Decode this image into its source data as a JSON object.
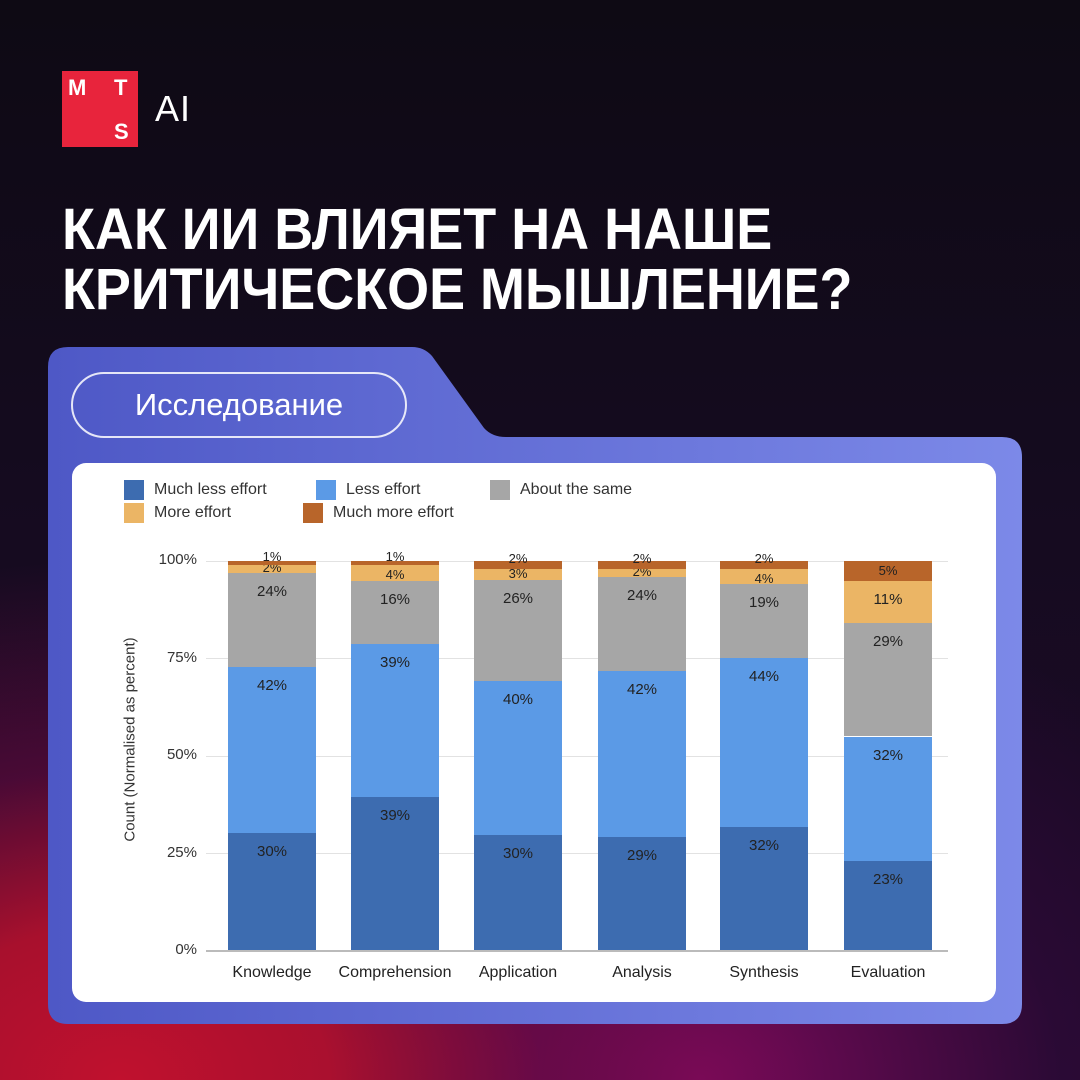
{
  "brand": {
    "logo_letters": [
      "M",
      "T",
      "S"
    ],
    "logo_suffix": "AI",
    "logo_color": "#e8243c"
  },
  "headline": {
    "line1": "КАК ИИ ВЛИЯЕТ НА НАШЕ",
    "line2": "КРИТИЧЕСКОЕ МЫШЛЕНИЕ?"
  },
  "tag": {
    "label": "Исследование"
  },
  "chart_data": {
    "type": "bar",
    "stacked": true,
    "title": "",
    "xlabel": "",
    "ylabel": "Count (Normalised as percent)",
    "ylim": [
      0,
      100
    ],
    "yticks": [
      "0%",
      "25%",
      "50%",
      "75%",
      "100%"
    ],
    "grid": true,
    "legend_position": "top-left",
    "categories": [
      "Knowledge",
      "Comprehension",
      "Application",
      "Analysis",
      "Synthesis",
      "Evaluation"
    ],
    "series": [
      {
        "name": "Much less effort",
        "color": "#3d6cb0",
        "values": [
          30,
          39,
          30,
          29,
          32,
          23
        ]
      },
      {
        "name": "Less effort",
        "color": "#5b9ae6",
        "values": [
          42,
          39,
          40,
          42,
          44,
          32
        ]
      },
      {
        "name": "About the same",
        "color": "#a6a6a6",
        "values": [
          24,
          16,
          26,
          24,
          19,
          29
        ]
      },
      {
        "name": "More effort",
        "color": "#ebb565",
        "values": [
          2,
          4,
          3,
          2,
          4,
          11
        ]
      },
      {
        "name": "Much more effort",
        "color": "#b8652a",
        "values": [
          1,
          1,
          2,
          2,
          2,
          5
        ]
      }
    ]
  }
}
